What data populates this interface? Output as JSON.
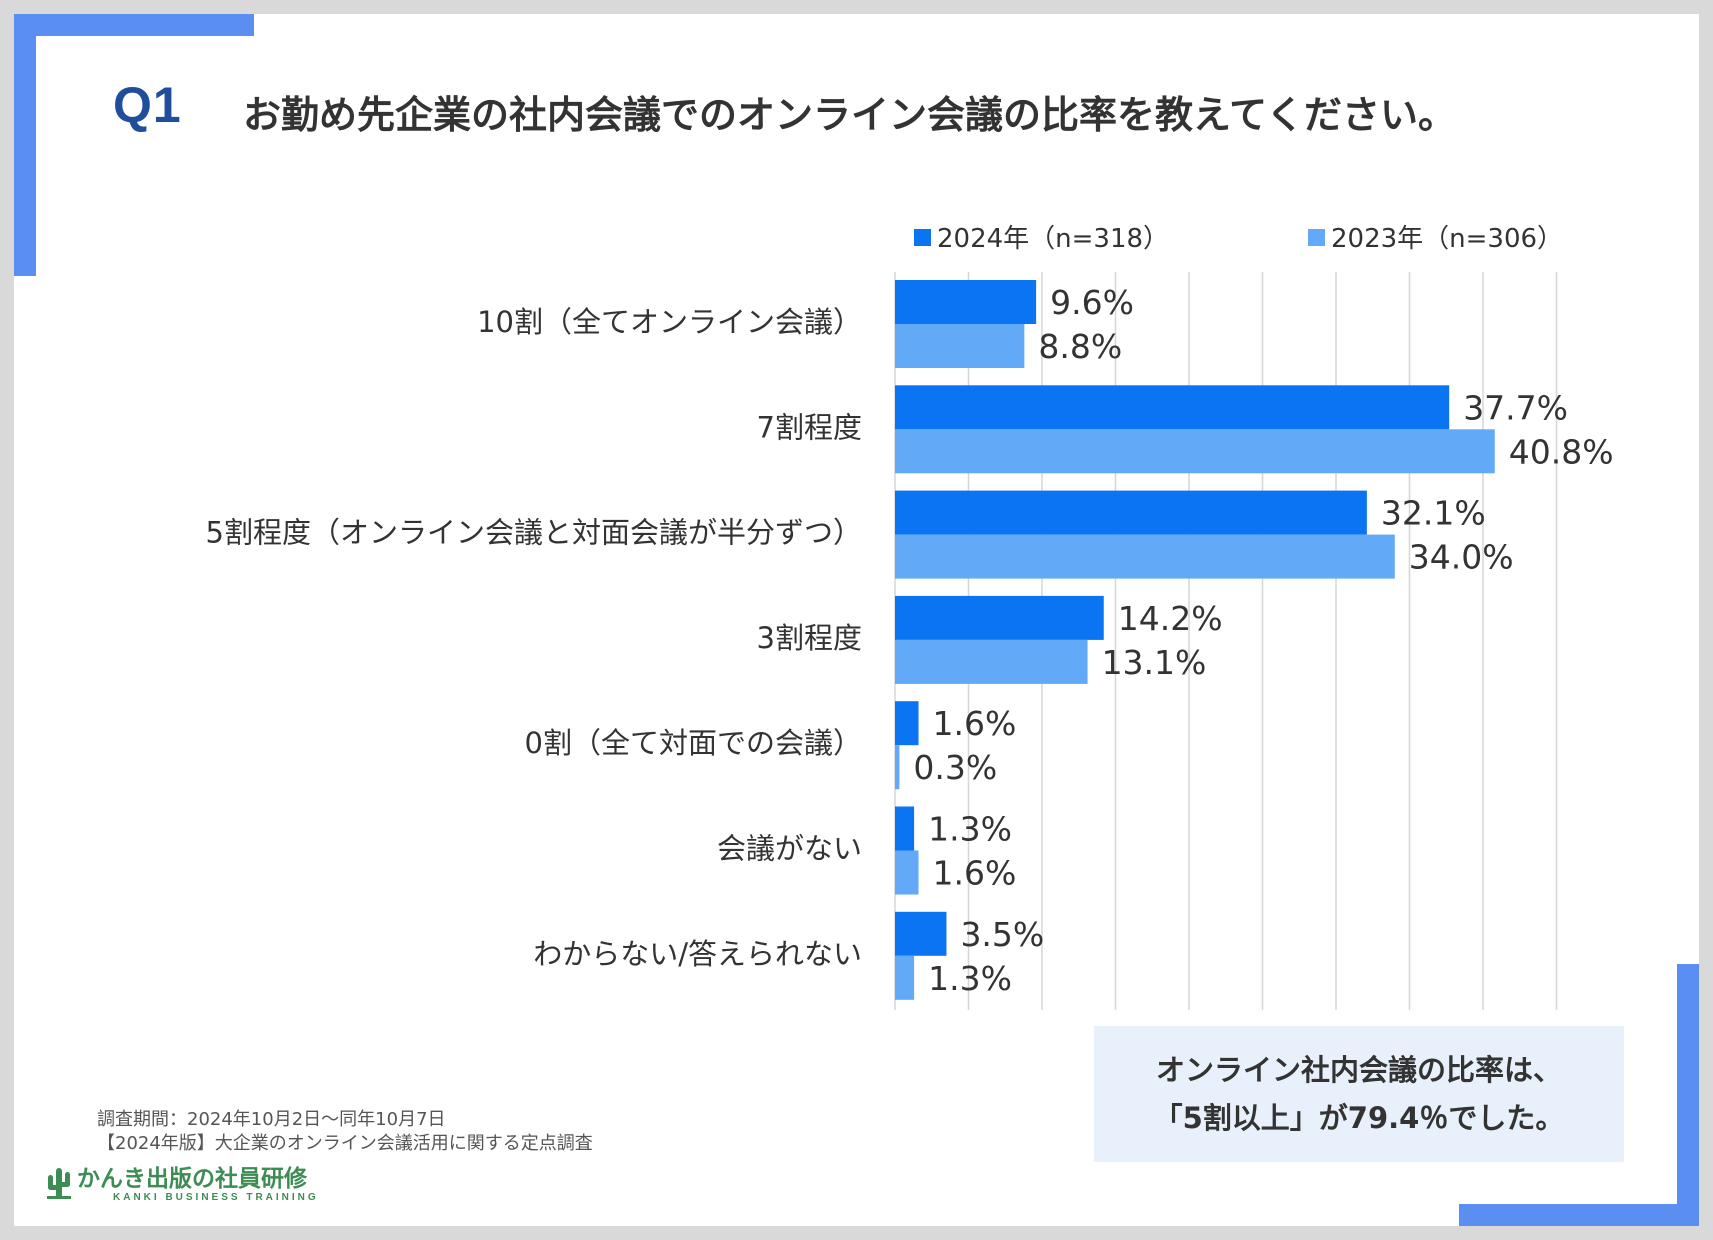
{
  "header": {
    "q_number": "Q1",
    "question": "お勤め先企業の社内会議でのオンライン会議の比率を教えてください。"
  },
  "legend": [
    {
      "label": "2024年（n=318）",
      "color": "#0a74f2"
    },
    {
      "label": "2023年（n=306）",
      "color": "#62a9f8"
    }
  ],
  "chart_data": {
    "type": "bar",
    "orientation": "horizontal",
    "categories": [
      "10割（全てオンライン会議）",
      "7割程度",
      "5割程度（オンライン会議と対面会議が半分ずつ）",
      "3割程度",
      "0割（全て対面での会議）",
      "会議がない",
      "わからない/答えられない"
    ],
    "series": [
      {
        "name": "2024年（n=318）",
        "color": "#0a74f2",
        "values": [
          9.6,
          37.7,
          32.1,
          14.2,
          1.6,
          1.3,
          3.5
        ],
        "labels": [
          "9.6%",
          "37.7%",
          "32.1%",
          "14.2%",
          "1.6%",
          "1.3%",
          "3.5%"
        ]
      },
      {
        "name": "2023年（n=306）",
        "color": "#62a9f8",
        "values": [
          8.8,
          40.8,
          34.0,
          13.1,
          0.3,
          1.6,
          1.3
        ],
        "labels": [
          "8.8%",
          "40.8%",
          "34.0%",
          "13.1%",
          "0.3%",
          "1.6%",
          "1.3%"
        ]
      }
    ],
    "xlim": [
      0,
      45
    ],
    "grid": true,
    "legend_position": "top"
  },
  "callout": {
    "line1": "オンライン社内会議の比率は、",
    "line2": "「5割以上」が79.4％でした。"
  },
  "footnote": {
    "line1": "調査期間：2024年10月2日～同年10月7日",
    "line2": "【2024年版】大企業のオンライン会議活用に関する定点調査"
  },
  "logo": {
    "main": "かんき出版の社員研修",
    "sub": "KANKI BUSINESS TRAINING"
  }
}
